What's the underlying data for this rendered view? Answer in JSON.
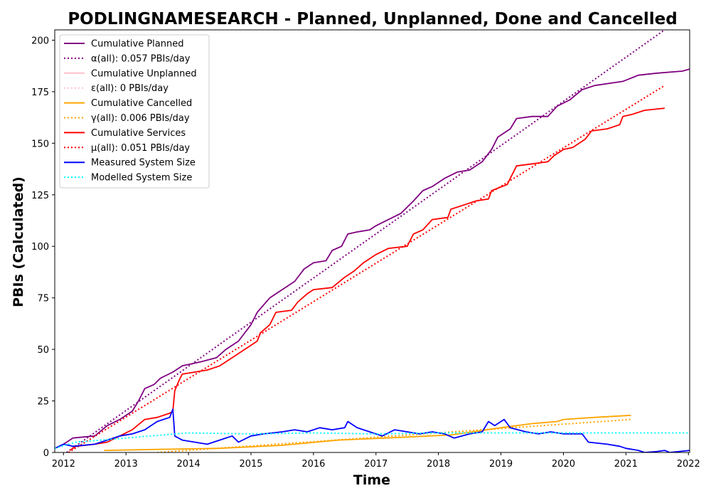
{
  "chart_data": {
    "type": "line",
    "title": "PODLINGNAMESEARCH - Planned, Unplanned, Done  and Cancelled",
    "xlabel": "Time",
    "ylabel": "PBIs (Calculated)",
    "xlim": [
      2011.86,
      2022.02
    ],
    "ylim": [
      0,
      205
    ],
    "x_ticks": [
      2012,
      2013,
      2014,
      2015,
      2016,
      2017,
      2018,
      2019,
      2020,
      2021,
      2022
    ],
    "y_ticks": [
      0,
      25,
      50,
      75,
      100,
      125,
      150,
      175,
      200
    ],
    "legend_position": "upper left",
    "grid": false,
    "series": [
      {
        "name": "Cumulative Planned",
        "color": "#800080",
        "style": "solid",
        "points": [
          [
            2011.86,
            2
          ],
          [
            2012.0,
            4
          ],
          [
            2012.15,
            7
          ],
          [
            2012.5,
            8
          ],
          [
            2012.7,
            13
          ],
          [
            2012.9,
            16
          ],
          [
            2013.1,
            20
          ],
          [
            2013.2,
            25
          ],
          [
            2013.3,
            31
          ],
          [
            2013.45,
            33
          ],
          [
            2013.55,
            36
          ],
          [
            2013.75,
            39
          ],
          [
            2013.9,
            42
          ],
          [
            2014.2,
            44
          ],
          [
            2014.45,
            46
          ],
          [
            2014.6,
            50
          ],
          [
            2014.8,
            54
          ],
          [
            2015.0,
            62
          ],
          [
            2015.1,
            68
          ],
          [
            2015.3,
            75
          ],
          [
            2015.5,
            79
          ],
          [
            2015.7,
            83
          ],
          [
            2015.85,
            89
          ],
          [
            2016.0,
            92
          ],
          [
            2016.2,
            93
          ],
          [
            2016.3,
            98
          ],
          [
            2016.45,
            100
          ],
          [
            2016.55,
            106
          ],
          [
            2016.7,
            107
          ],
          [
            2016.9,
            108
          ],
          [
            2017.0,
            110
          ],
          [
            2017.2,
            113
          ],
          [
            2017.4,
            116
          ],
          [
            2017.6,
            122
          ],
          [
            2017.75,
            127
          ],
          [
            2017.9,
            129
          ],
          [
            2018.1,
            133
          ],
          [
            2018.3,
            136
          ],
          [
            2018.5,
            137
          ],
          [
            2018.7,
            141
          ],
          [
            2018.85,
            147
          ],
          [
            2018.95,
            153
          ],
          [
            2019.15,
            157
          ],
          [
            2019.25,
            162
          ],
          [
            2019.5,
            163
          ],
          [
            2019.75,
            163
          ],
          [
            2019.9,
            168
          ],
          [
            2020.1,
            171
          ],
          [
            2020.3,
            176
          ],
          [
            2020.5,
            178
          ],
          [
            2020.95,
            180
          ],
          [
            2021.2,
            183
          ],
          [
            2021.5,
            184
          ],
          [
            2021.9,
            185
          ],
          [
            2022.02,
            186
          ]
        ]
      },
      {
        "name": "α(all): 0.057 PBIs/day",
        "color": "#800080",
        "style": "dotted",
        "points": [
          [
            2012.05,
            0
          ],
          [
            2021.62,
            205
          ]
        ]
      },
      {
        "name": "Cumulative Unplanned",
        "color": "#ffc0cb",
        "style": "solid",
        "points": []
      },
      {
        "name": "ε(all): 0 PBIs/day",
        "color": "#ffc0cb",
        "style": "dotted",
        "points": []
      },
      {
        "name": "Cumulative Cancelled",
        "color": "#ffa500",
        "style": "solid",
        "points": [
          [
            2012.65,
            1
          ],
          [
            2013.5,
            1.5
          ],
          [
            2014.5,
            2
          ],
          [
            2015.5,
            3.5
          ],
          [
            2016.4,
            6
          ],
          [
            2017.5,
            7.5
          ],
          [
            2018.2,
            8.5
          ],
          [
            2019.0,
            12
          ],
          [
            2019.5,
            14
          ],
          [
            2019.9,
            15
          ],
          [
            2020.0,
            16
          ],
          [
            2020.5,
            17
          ],
          [
            2021.08,
            18
          ]
        ]
      },
      {
        "name": "γ(all): 0.006 PBIs/day",
        "color": "#ffa500",
        "style": "dotted",
        "points": [
          [
            2013.5,
            0
          ],
          [
            2021.08,
            16
          ]
        ]
      },
      {
        "name": "Cumulative Services",
        "color": "#ff0000",
        "style": "solid",
        "points": [
          [
            2012.1,
            1
          ],
          [
            2012.2,
            3
          ],
          [
            2012.5,
            4
          ],
          [
            2012.7,
            5
          ],
          [
            2012.9,
            8
          ],
          [
            2013.1,
            11
          ],
          [
            2013.3,
            16
          ],
          [
            2013.5,
            17
          ],
          [
            2013.7,
            19
          ],
          [
            2013.75,
            20
          ],
          [
            2013.78,
            30
          ],
          [
            2013.85,
            35
          ],
          [
            2013.9,
            38
          ],
          [
            2014.1,
            39
          ],
          [
            2014.3,
            40
          ],
          [
            2014.5,
            42
          ],
          [
            2014.7,
            46
          ],
          [
            2014.9,
            50
          ],
          [
            2015.1,
            54
          ],
          [
            2015.15,
            58
          ],
          [
            2015.3,
            62
          ],
          [
            2015.4,
            68
          ],
          [
            2015.65,
            69
          ],
          [
            2015.75,
            73
          ],
          [
            2015.9,
            77
          ],
          [
            2016.0,
            79
          ],
          [
            2016.3,
            80
          ],
          [
            2016.5,
            85
          ],
          [
            2016.65,
            88
          ],
          [
            2016.8,
            92
          ],
          [
            2017.0,
            96
          ],
          [
            2017.2,
            99
          ],
          [
            2017.5,
            100
          ],
          [
            2017.6,
            106
          ],
          [
            2017.75,
            108
          ],
          [
            2017.9,
            113
          ],
          [
            2018.15,
            114
          ],
          [
            2018.2,
            118
          ],
          [
            2018.4,
            120
          ],
          [
            2018.6,
            122
          ],
          [
            2018.8,
            123
          ],
          [
            2018.85,
            127
          ],
          [
            2019.1,
            130
          ],
          [
            2019.25,
            139
          ],
          [
            2019.5,
            140
          ],
          [
            2019.75,
            141
          ],
          [
            2019.85,
            144
          ],
          [
            2020.0,
            147
          ],
          [
            2020.15,
            148
          ],
          [
            2020.35,
            152
          ],
          [
            2020.45,
            156
          ],
          [
            2020.7,
            157
          ],
          [
            2020.9,
            159
          ],
          [
            2020.95,
            163
          ],
          [
            2021.1,
            164
          ],
          [
            2021.3,
            166
          ],
          [
            2021.62,
            167
          ]
        ]
      },
      {
        "name": "μ(all): 0.051 PBIs/day",
        "color": "#ff0000",
        "style": "dotted",
        "points": [
          [
            2012.08,
            0
          ],
          [
            2021.62,
            178
          ]
        ]
      },
      {
        "name": "Measured System Size",
        "color": "#0000ff",
        "style": "solid",
        "points": [
          [
            2011.86,
            2
          ],
          [
            2012.0,
            4
          ],
          [
            2012.15,
            3
          ],
          [
            2012.5,
            4
          ],
          [
            2012.7,
            6
          ],
          [
            2012.9,
            8
          ],
          [
            2013.1,
            9
          ],
          [
            2013.3,
            11
          ],
          [
            2013.5,
            15
          ],
          [
            2013.7,
            17
          ],
          [
            2013.75,
            21
          ],
          [
            2013.78,
            8
          ],
          [
            2013.9,
            6
          ],
          [
            2014.1,
            5
          ],
          [
            2014.3,
            4
          ],
          [
            2014.5,
            6
          ],
          [
            2014.7,
            8
          ],
          [
            2014.8,
            5
          ],
          [
            2015.0,
            8
          ],
          [
            2015.2,
            9
          ],
          [
            2015.5,
            10
          ],
          [
            2015.7,
            11
          ],
          [
            2015.9,
            10
          ],
          [
            2016.1,
            12
          ],
          [
            2016.3,
            11
          ],
          [
            2016.5,
            12
          ],
          [
            2016.55,
            15
          ],
          [
            2016.7,
            12
          ],
          [
            2016.9,
            10
          ],
          [
            2017.1,
            8
          ],
          [
            2017.3,
            11
          ],
          [
            2017.5,
            10
          ],
          [
            2017.7,
            9
          ],
          [
            2017.9,
            10
          ],
          [
            2018.1,
            9
          ],
          [
            2018.25,
            7
          ],
          [
            2018.5,
            9
          ],
          [
            2018.7,
            10
          ],
          [
            2018.8,
            15
          ],
          [
            2018.9,
            13
          ],
          [
            2019.05,
            16
          ],
          [
            2019.15,
            12
          ],
          [
            2019.4,
            10
          ],
          [
            2019.6,
            9
          ],
          [
            2019.8,
            10
          ],
          [
            2020.0,
            9
          ],
          [
            2020.3,
            9
          ],
          [
            2020.4,
            5
          ],
          [
            2020.7,
            4
          ],
          [
            2020.9,
            3
          ],
          [
            2021.0,
            2
          ],
          [
            2021.2,
            1
          ],
          [
            2021.3,
            0
          ],
          [
            2021.5,
            0.5
          ],
          [
            2021.62,
            1
          ],
          [
            2021.7,
            0
          ],
          [
            2022.02,
            1
          ]
        ]
      },
      {
        "name": "Modelled System Size",
        "color": "#00ffff",
        "style": "dotted",
        "points": [
          [
            2011.86,
            2
          ],
          [
            2012.2,
            5
          ],
          [
            2012.6,
            6
          ],
          [
            2013.0,
            7
          ],
          [
            2013.4,
            8
          ],
          [
            2013.8,
            9
          ],
          [
            2014.0,
            9.5
          ],
          [
            2015.0,
            9
          ],
          [
            2016.0,
            9.5
          ],
          [
            2017.0,
            9
          ],
          [
            2018.0,
            9.5
          ],
          [
            2019.0,
            9.5
          ],
          [
            2020.0,
            9.5
          ],
          [
            2021.0,
            9.5
          ],
          [
            2022.02,
            9.5
          ]
        ]
      }
    ]
  }
}
